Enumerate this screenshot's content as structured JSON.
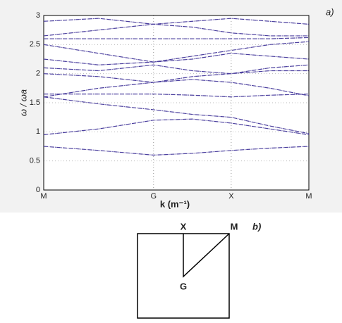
{
  "chart_data": {
    "type": "line",
    "x": [
      0,
      0.707,
      1.414,
      1.914,
      2.414,
      2.914,
      3.414
    ],
    "xlim": [
      0,
      3.414
    ],
    "xticks": [
      {
        "value": 0,
        "label": "M"
      },
      {
        "value": 1.414,
        "label": "G"
      },
      {
        "value": 2.414,
        "label": "X"
      },
      {
        "value": 3.414,
        "label": "M"
      }
    ],
    "ylim": [
      0,
      3
    ],
    "yticks": [
      0,
      0.5,
      1,
      1.5,
      2,
      2.5,
      3
    ],
    "xlabel": "k (m⁻¹)",
    "ylabel": "ω / ωa",
    "annotation": "a)",
    "grid": true,
    "line_color": "#4b3f9e",
    "series": [
      {
        "values": [
          0.75,
          0.68,
          0.6,
          0.63,
          0.68,
          0.72,
          0.75
        ]
      },
      {
        "values": [
          0.95,
          1.05,
          1.2,
          1.22,
          1.15,
          1.05,
          0.95
        ]
      },
      {
        "values": [
          1.6,
          1.48,
          1.38,
          1.3,
          1.25,
          1.1,
          0.97
        ]
      },
      {
        "values": [
          1.65,
          1.65,
          1.65,
          1.63,
          1.6,
          1.63,
          1.65
        ]
      },
      {
        "values": [
          1.6,
          1.75,
          1.85,
          1.9,
          1.85,
          1.75,
          1.62
        ]
      },
      {
        "values": [
          2.0,
          1.95,
          1.85,
          1.95,
          2.0,
          2.05,
          2.05
        ]
      },
      {
        "values": [
          2.1,
          2.05,
          2.15,
          2.05,
          2.0,
          2.1,
          2.15
        ]
      },
      {
        "values": [
          2.25,
          2.15,
          2.2,
          2.25,
          2.35,
          2.3,
          2.25
        ]
      },
      {
        "values": [
          2.5,
          2.35,
          2.2,
          2.3,
          2.4,
          2.5,
          2.55
        ]
      },
      {
        "values": [
          2.6,
          2.6,
          2.6,
          2.6,
          2.6,
          2.6,
          2.62
        ]
      },
      {
        "values": [
          2.65,
          2.75,
          2.85,
          2.8,
          2.7,
          2.65,
          2.65
        ]
      },
      {
        "values": [
          2.9,
          2.95,
          2.85,
          2.9,
          2.95,
          2.9,
          2.85
        ]
      }
    ]
  },
  "diagram": {
    "corner_x": "X",
    "corner_m": "M",
    "center_g": "G",
    "annotation": "b)"
  }
}
